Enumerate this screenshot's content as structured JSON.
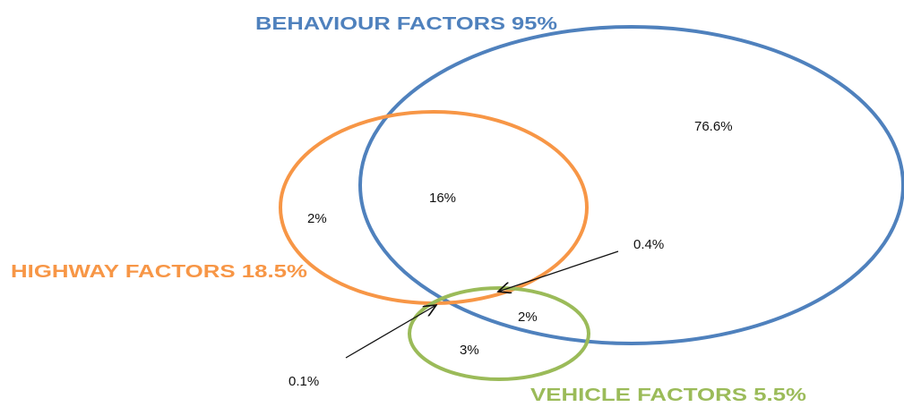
{
  "sets": [
    {
      "label": "BEHAVIOUR FACTORS 95%"
    },
    {
      "label": "HIGHWAY FACTORS 18.5%"
    },
    {
      "label": "VEHICLE FACTORS 5.5%"
    }
  ],
  "regions": [
    {
      "label": "76.6%"
    },
    {
      "label": "16%"
    },
    {
      "label": "2%"
    },
    {
      "label": "0.4%"
    },
    {
      "label": "2%"
    },
    {
      "label": "3%"
    },
    {
      "label": "0.1%"
    }
  ]
}
